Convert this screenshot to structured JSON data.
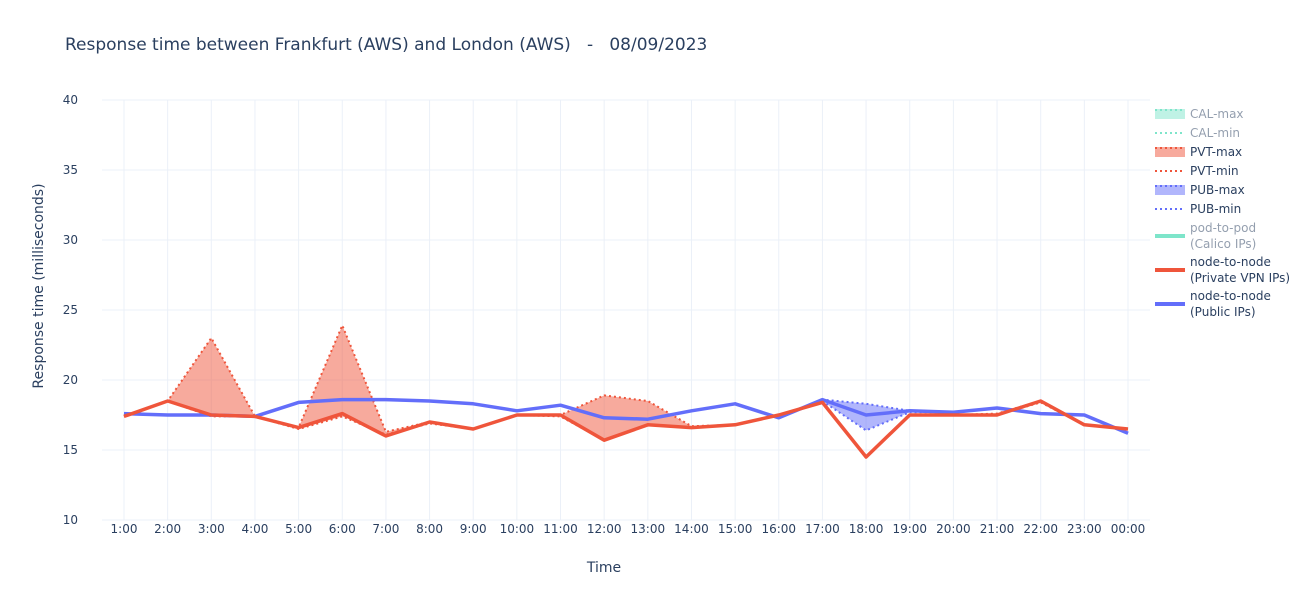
{
  "chart_data": {
    "type": "line",
    "title": "Response time between Frankfurt (AWS) and London (AWS)   -   08/09/2023",
    "xlabel": "Time",
    "ylabel": "Response time (milliseconds)",
    "ylim": [
      10,
      40
    ],
    "yticks": [
      10,
      15,
      20,
      25,
      30,
      35,
      40
    ],
    "grid": true,
    "legend_position": "right",
    "categories": [
      "1:00",
      "2:00",
      "3:00",
      "4:00",
      "5:00",
      "6:00",
      "7:00",
      "8:00",
      "9:00",
      "10:00",
      "11:00",
      "12:00",
      "13:00",
      "14:00",
      "15:00",
      "16:00",
      "17:00",
      "18:00",
      "19:00",
      "20:00",
      "21:00",
      "22:00",
      "23:00",
      "00:00"
    ],
    "bands": [
      {
        "name": "PVT",
        "color": "#EF553B",
        "fill": "rgba(239,85,59,0.5)",
        "max": [
          17.4,
          18.5,
          23.0,
          17.4,
          16.6,
          23.9,
          16.3,
          17.0,
          16.5,
          17.5,
          17.5,
          18.9,
          18.5,
          16.7,
          16.8,
          17.5,
          18.4,
          14.5,
          17.5,
          17.5,
          17.6,
          18.5,
          16.8,
          16.5
        ],
        "min": [
          17.4,
          18.5,
          17.4,
          17.4,
          16.5,
          17.4,
          16.1,
          16.9,
          16.5,
          17.5,
          17.4,
          15.7,
          16.8,
          16.6,
          16.8,
          17.5,
          18.4,
          14.5,
          17.5,
          17.5,
          17.5,
          18.4,
          16.8,
          16.5
        ]
      },
      {
        "name": "PUB",
        "color": "#636EFA",
        "fill": "rgba(99,110,250,0.5)",
        "max": [
          17.6,
          17.5,
          17.5,
          17.4,
          18.4,
          18.6,
          18.6,
          18.5,
          18.3,
          17.8,
          18.2,
          17.3,
          17.2,
          17.8,
          18.3,
          17.3,
          18.6,
          18.3,
          17.8,
          17.7,
          18.0,
          17.6,
          17.5,
          16.2
        ],
        "min": [
          17.6,
          17.5,
          17.5,
          17.4,
          18.4,
          18.6,
          18.6,
          18.5,
          18.3,
          17.8,
          18.2,
          17.3,
          17.2,
          17.8,
          18.3,
          17.3,
          18.5,
          16.4,
          17.7,
          17.7,
          18.0,
          17.6,
          17.5,
          16.2
        ]
      }
    ],
    "series": [
      {
        "name": "node-to-node (Private VPN IPs)",
        "color": "#EF553B",
        "values": [
          17.4,
          18.5,
          17.5,
          17.4,
          16.6,
          17.6,
          16.0,
          17.0,
          16.5,
          17.5,
          17.5,
          15.7,
          16.8,
          16.6,
          16.8,
          17.5,
          18.4,
          14.5,
          17.5,
          17.5,
          17.5,
          18.5,
          16.8,
          16.5
        ]
      },
      {
        "name": "node-to-node (Public IPs)",
        "color": "#636EFA",
        "values": [
          17.6,
          17.5,
          17.5,
          17.4,
          18.4,
          18.6,
          18.6,
          18.5,
          18.3,
          17.8,
          18.2,
          17.3,
          17.2,
          17.8,
          18.3,
          17.3,
          18.6,
          17.5,
          17.8,
          17.7,
          18.0,
          17.6,
          17.5,
          16.2
        ]
      }
    ],
    "legend": [
      {
        "label": [
          "CAL-max"
        ],
        "kind": "band",
        "color": "#00CC96",
        "dim": true
      },
      {
        "label": [
          "CAL-min"
        ],
        "kind": "dotted",
        "color": "#00CC96",
        "dim": true
      },
      {
        "label": [
          "PVT-max"
        ],
        "kind": "band",
        "color": "#EF553B",
        "dim": false
      },
      {
        "label": [
          "PVT-min"
        ],
        "kind": "dotted",
        "color": "#EF553B",
        "dim": false
      },
      {
        "label": [
          "PUB-max"
        ],
        "kind": "band",
        "color": "#636EFA",
        "dim": false
      },
      {
        "label": [
          "PUB-min"
        ],
        "kind": "dotted",
        "color": "#636EFA",
        "dim": false
      },
      {
        "label": [
          "pod-to-pod",
          "(Calico IPs)"
        ],
        "kind": "solid",
        "color": "#00CC96",
        "dim": true
      },
      {
        "label": [
          "node-to-node",
          "(Private VPN IPs)"
        ],
        "kind": "solid",
        "color": "#EF553B",
        "dim": false
      },
      {
        "label": [
          "node-to-node",
          "(Public IPs)"
        ],
        "kind": "solid",
        "color": "#636EFA",
        "dim": false
      }
    ]
  }
}
